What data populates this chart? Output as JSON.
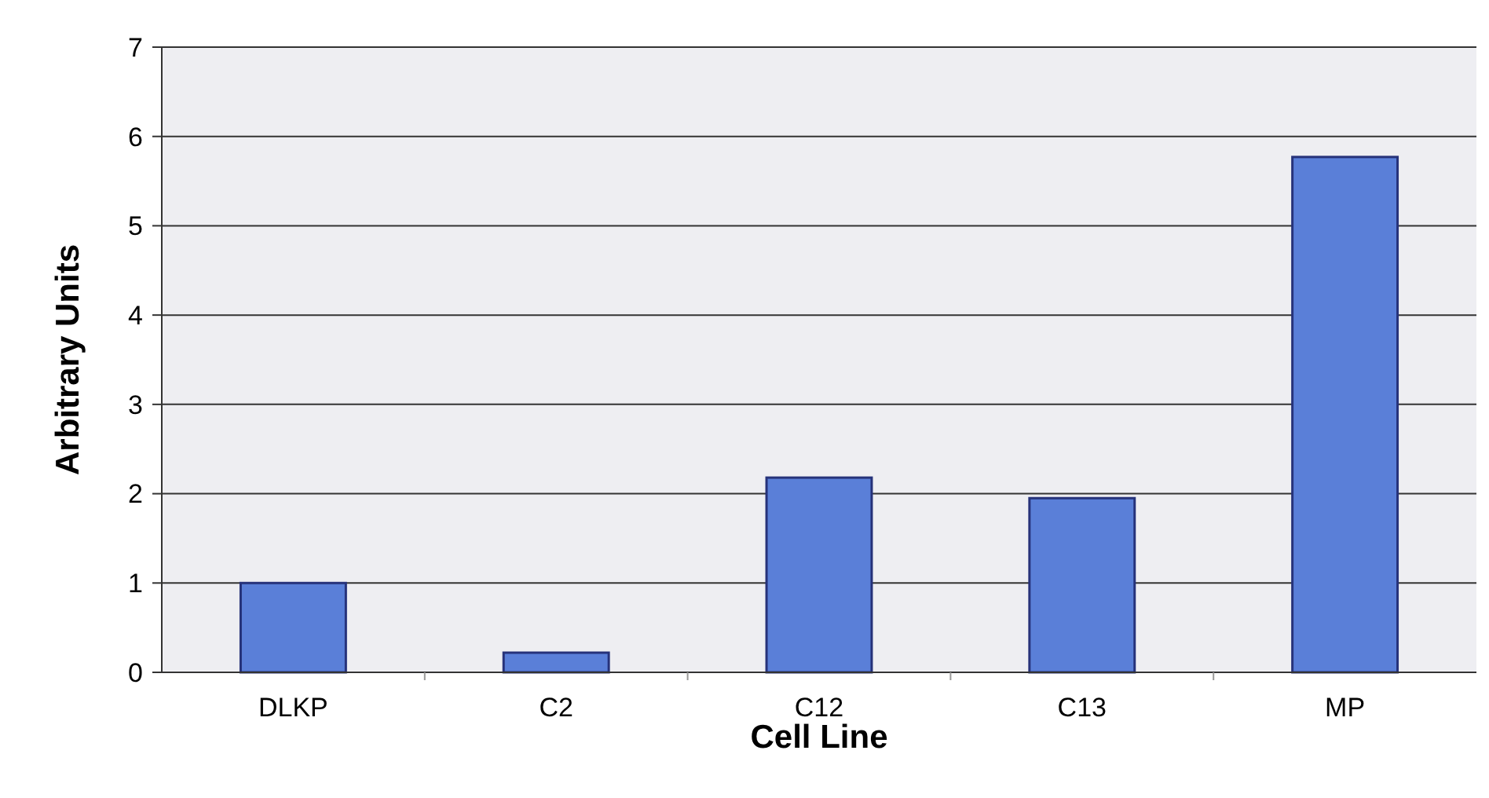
{
  "chart_data": {
    "type": "bar",
    "xlabel": "Cell Line",
    "ylabel": "Arbitrary Units",
    "categories": [
      "DLKP",
      "C2",
      "C12",
      "C13",
      "MP"
    ],
    "values": [
      1.0,
      0.22,
      2.18,
      1.95,
      5.77
    ],
    "color": "#5a7fd8",
    "ylim": [
      0,
      7
    ],
    "yticks": [
      0,
      1,
      2,
      3,
      4,
      5,
      6,
      7
    ],
    "grid": "y"
  }
}
